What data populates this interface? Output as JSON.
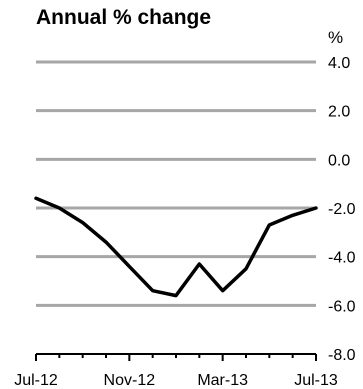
{
  "chart_data": {
    "type": "line",
    "title": "Annual % change",
    "unit": "%",
    "xlabel": "",
    "ylabel": "",
    "ylim": [
      -8.0,
      4.0
    ],
    "y_ticks": [
      "4.0",
      "2.0",
      "0.0",
      "-2.0",
      "-4.0",
      "-6.0",
      "-8.0"
    ],
    "x_ticks": [
      "Jul-12",
      "Nov-12",
      "Mar-13",
      "Jul-13"
    ],
    "grid": true,
    "series": [
      {
        "x": [
          "Jul-12",
          "Aug-12",
          "Sep-12",
          "Oct-12",
          "Nov-12",
          "Dec-12",
          "Jan-13",
          "Feb-13",
          "Mar-13",
          "Apr-13",
          "May-13",
          "Jun-13",
          "Jul-13"
        ],
        "values": [
          -1.6,
          -2.0,
          -2.6,
          -3.4,
          -4.4,
          -5.4,
          -5.6,
          -4.3,
          -5.4,
          -4.5,
          -2.7,
          -2.3,
          -2.0
        ],
        "color": "#000000"
      }
    ]
  }
}
